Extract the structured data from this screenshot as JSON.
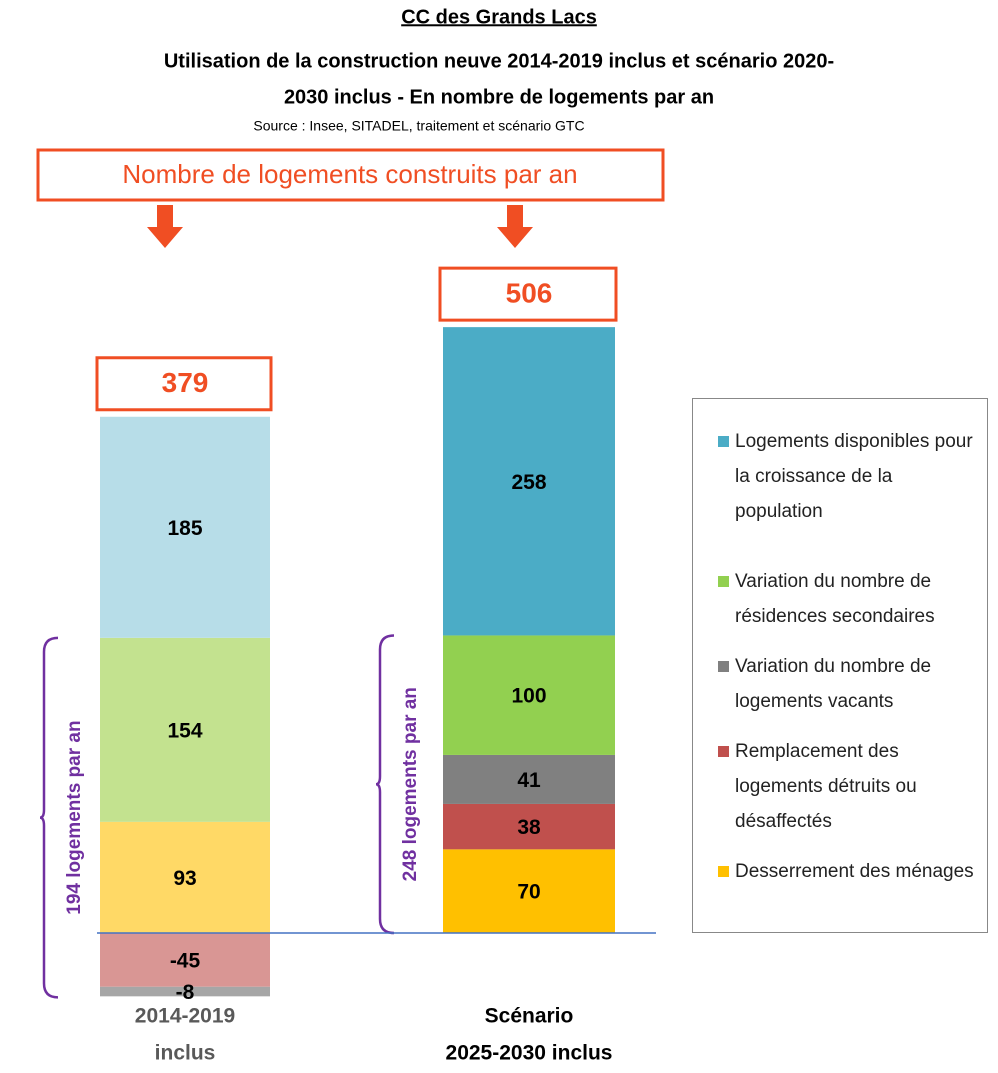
{
  "chart_data": {
    "type": "stacked-bar",
    "title_top": "CC des Grands Lacs",
    "title": [
      "Utilisation de la construction neuve 2014-2019 inclus et scénario 2020-",
      "2030 inclus - En nombre de logements par an"
    ],
    "subtitle": "Source : Insee, SITADEL, traitement et  scénario GTC",
    "header": "Nombre de logements construits par an",
    "categories": [
      [
        "2014-2019",
        "inclus"
      ],
      [
        "Scénario",
        "2025-2030 inclus"
      ]
    ],
    "totals": [
      379,
      506
    ],
    "brackets": [
      "194 logements par an",
      "248 logements par an"
    ],
    "series": [
      {
        "name": "Logements disponibles pour la croissance de la population",
        "color": "#4bacc6",
        "colors": [
          "#b7dde8",
          "#4bacc6"
        ],
        "values": [
          185,
          258
        ]
      },
      {
        "name": "Variation du nombre de résidences secondaires",
        "color": "#92d050",
        "colors": [
          "#c3e28f",
          "#92d050"
        ],
        "values": [
          154,
          100
        ]
      },
      {
        "name": "Variation du nombre de logements vacants",
        "color": "#808080",
        "colors": [
          "#a6a6a6",
          "#808080"
        ],
        "values": [
          -8,
          41
        ]
      },
      {
        "name": "Remplacement des logements détruits ou désaffectés",
        "color": "#c0504d",
        "colors": [
          "#d99694",
          "#c0504d"
        ],
        "values": [
          -45,
          38
        ]
      },
      {
        "name": "Desserrement des ménages",
        "color": "#ffc000",
        "colors": [
          "#ffd966",
          "#ffc000"
        ],
        "values": [
          93,
          70
        ]
      }
    ],
    "legend": "right"
  }
}
